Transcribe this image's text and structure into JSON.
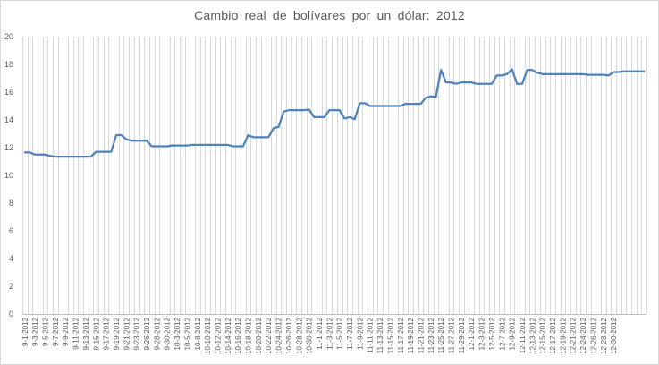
{
  "chart_data": {
    "type": "line",
    "title": "Cambio real de bolívares por un dólar: 2012",
    "xlabel": "",
    "ylabel": "",
    "ylim": [
      0,
      20
    ],
    "yticks": [
      0,
      2,
      4,
      6,
      8,
      10,
      12,
      14,
      16,
      18,
      20
    ],
    "grid": "vertical",
    "legend": "none",
    "line_color": "#4f81bd",
    "grid_color": "#d9d9d9",
    "x_tick_labels": [
      "9-1-2012",
      "9-3-2012",
      "9-5-2012",
      "9-7-2012",
      "9-9-2012",
      "9-11-2012",
      "9-13-2012",
      "9-15-2012",
      "9-17-2012",
      "9-19-2012",
      "9-21-2012",
      "9-23-2012",
      "9-26-2012",
      "9-28-2012",
      "9-30-2012",
      "10-3-2012",
      "10-5-2012",
      "10-8-2012",
      "10-10-2012",
      "10-12-2012",
      "10-14-2012",
      "10-16-2012",
      "10-18-2012",
      "10-20-2012",
      "10-22-2012",
      "10-24-2012",
      "10-26-2012",
      "10-28-2012",
      "10-30-2012",
      "11-1-2012",
      "11-3-2012",
      "11-5-2012",
      "11-7-2012",
      "11-9-2012",
      "11-11-2012",
      "11-13-2012",
      "11-15-2012",
      "11-17-2012",
      "11-19-2012",
      "11-21-2012",
      "11-23-2012",
      "11-25-2012",
      "11-27-2012",
      "11-29-2012",
      "12-1-2012",
      "12-3-2012",
      "12-5-2012",
      "12-7-2012",
      "12-9-2012",
      "12-11-2012",
      "12-13-2012",
      "12-15-2012",
      "12-17-2012",
      "12-19-2012",
      "12-21-2012",
      "12-24-2012",
      "12-26-2012",
      "12-28-2012",
      "12-30-2012"
    ],
    "values": [
      11.65,
      11.65,
      11.5,
      11.5,
      11.5,
      11.4,
      11.35,
      11.35,
      11.35,
      11.35,
      11.35,
      11.35,
      11.35,
      11.35,
      11.7,
      11.7,
      11.7,
      11.7,
      12.9,
      12.9,
      12.6,
      12.5,
      12.5,
      12.5,
      12.5,
      12.1,
      12.1,
      12.1,
      12.1,
      12.15,
      12.15,
      12.15,
      12.15,
      12.2,
      12.2,
      12.2,
      12.2,
      12.2,
      12.2,
      12.2,
      12.2,
      12.1,
      12.1,
      12.1,
      12.9,
      12.75,
      12.75,
      12.75,
      12.75,
      13.4,
      13.5,
      14.6,
      14.7,
      14.7,
      14.7,
      14.7,
      14.75,
      14.2,
      14.2,
      14.2,
      14.7,
      14.7,
      14.7,
      14.1,
      14.2,
      14.05,
      15.2,
      15.2,
      15.0,
      15.0,
      15.0,
      15.0,
      15.0,
      15.0,
      15.0,
      15.15,
      15.15,
      15.15,
      15.15,
      15.6,
      15.7,
      15.65,
      17.6,
      16.7,
      16.7,
      16.6,
      16.7,
      16.7,
      16.7,
      16.6,
      16.6,
      16.6,
      16.6,
      17.2,
      17.2,
      17.3,
      17.65,
      16.6,
      16.6,
      17.6,
      17.6,
      17.4,
      17.3,
      17.3,
      17.3,
      17.3,
      17.3,
      17.3,
      17.3,
      17.3,
      17.3,
      17.25,
      17.25,
      17.25,
      17.25,
      17.2,
      17.45,
      17.45,
      17.5,
      17.5,
      17.5,
      17.5,
      17.5
    ]
  }
}
